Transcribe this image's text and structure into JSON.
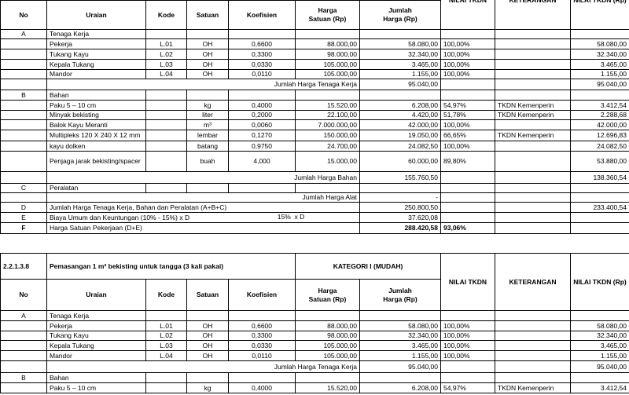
{
  "table1": {
    "header": {
      "no": "No",
      "uraian": "Uraian",
      "kode": "Kode",
      "satuan": "Satuan",
      "koef": "Koefisien",
      "harga": "Harga\nSatuan (Rp)",
      "jumlah": "Jumlah\nHarga (Rp)",
      "tkdn": "NILAI TKDN",
      "ket": "KETERANGAN",
      "nilai": "NILAI TKDN (Rp)"
    },
    "rows": [
      {
        "no": "A",
        "uraian": "Tenaga Kerja"
      },
      {
        "uraian": "Pekerja",
        "kode": "L.01",
        "satuan": "OH",
        "koef": "0,6600",
        "harga": "88.000,00",
        "jumlah": "58.080,00",
        "tkdn": "100,00%",
        "nilai": "58.080,00"
      },
      {
        "uraian": "Tukang Kayu",
        "kode": "L.02",
        "satuan": "OH",
        "koef": "0,3300",
        "harga": "98.000,00",
        "jumlah": "32.340,00",
        "tkdn": "100,00%",
        "nilai": "32.340,00"
      },
      {
        "uraian": "Kepala Tukang",
        "kode": "L.03",
        "satuan": "OH",
        "koef": "0,0330",
        "harga": "105.000,00",
        "jumlah": "3.465,00",
        "tkdn": "100,00%",
        "nilai": "3.465,00"
      },
      {
        "uraian": "Mandor",
        "kode": "L.04",
        "satuan": "OH",
        "koef": "0,0110",
        "harga": "105.000,00",
        "jumlah": "1.155,00",
        "tkdn": "100,00%",
        "nilai": "1.155,00"
      },
      {
        "subtotal": "Jumlah Harga Tenaga Kerja",
        "jumlah": "95.040,00",
        "nilai": "95.040,00"
      },
      {
        "no": "B",
        "uraian": "Bahan"
      },
      {
        "uraian": "Paku 5 – 10 cm",
        "satuan": "kg",
        "koef": "0,4000",
        "harga": "15.520,00",
        "jumlah": "6.208,00",
        "tkdn": "54,97%",
        "ket": "TKDN Kemenperin",
        "nilai": "3.412,54"
      },
      {
        "uraian": "Minyak bekisting",
        "satuan": "liter",
        "koef": "0,2000",
        "harga": "22.100,00",
        "jumlah": "4.420,00",
        "tkdn": "51,78%",
        "ket": "TKDN Kemenperin",
        "nilai": "2.288,68"
      },
      {
        "uraian": "Balok Kayu Meranti",
        "satuan": "m³",
        "koef": "0,0060",
        "harga": "7.000.000,00",
        "jumlah": "42.000,00",
        "tkdn": "100,00%",
        "nilai": "42.000,00"
      },
      {
        "uraian": "Multipleks 120 X 240 X  12 mm",
        "satuan": "lembar",
        "koef": "0,1270",
        "harga": "150.000,00",
        "jumlah": "19.050,00",
        "tkdn": "66,65%",
        "ket": "TKDN Kemenperin",
        "nilai": "12.696,83"
      },
      {
        "uraian": "kayu dolken",
        "satuan": "batang",
        "koef": "0,9750",
        "harga": "24.700,00",
        "jumlah": "24.082,50",
        "tkdn": "100,00%",
        "nilai": "24.082,50"
      },
      {
        "uraian": "Penjaga jarak bekisting/spacer",
        "satuan": "buah",
        "koef": "4,000",
        "harga": "15.000,00",
        "jumlah": "60.000,00",
        "tkdn": "89,80%",
        "nilai": "53.880,00"
      },
      {
        "subtotal": "Jumlah Harga Bahan",
        "jumlah": "155.760,50",
        "nilai": "138.360,54"
      },
      {
        "no": "C",
        "uraian": "Peralatan"
      },
      {
        "subtotal": "Jumlah Harga Alat",
        "jumlah": "-"
      },
      {
        "no": "D",
        "summary": "Jumlah Harga Tenaga Kerja, Bahan dan Peralatan (A+B+C)",
        "jumlah": "250.800,50",
        "nilai": "233.400,54"
      },
      {
        "no": "E",
        "summary": "Biaya Umum dan Keuntungan  (10% - 15%) x D",
        "note": "15%  x D",
        "jumlah": "37.620,08"
      },
      {
        "no": "F",
        "summary": "Harga Satuan Pekerjaan (D+E)",
        "jumlah": "288.420,58",
        "tkdn": "93,06%"
      }
    ]
  },
  "table2": {
    "code": "2.2.1.3.8",
    "title": "Pemasangan 1 m² bekisting untuk tangga (3 kali pakai)",
    "category": "KATEGORI I (MUDAH)",
    "header": {
      "no": "No",
      "uraian": "Uraian",
      "kode": "Kode",
      "satuan": "Satuan",
      "koef": "Koefisien",
      "harga": "Harga\nSatuan (Rp)",
      "jumlah": "Jumlah\nHarga (Rp)",
      "tkdn": "NILAI TKDN",
      "ket": "KETERANGAN",
      "nilai": "NILAI TKDN (Rp)"
    },
    "rows": [
      {
        "no": "A",
        "uraian": "Tenaga Kerja"
      },
      {
        "uraian": "Pekerja",
        "kode": "L.01",
        "satuan": "OH",
        "koef": "0,6600",
        "harga": "88.000,00",
        "jumlah": "58.080,00",
        "tkdn": "100,00%",
        "nilai": "58.080,00"
      },
      {
        "uraian": "Tukang Kayu",
        "kode": "L.02",
        "satuan": "OH",
        "koef": "0,3300",
        "harga": "98.000,00",
        "jumlah": "32.340,00",
        "tkdn": "100,00%",
        "nilai": "32.340,00"
      },
      {
        "uraian": "Kepala Tukang",
        "kode": "L.03",
        "satuan": "OH",
        "koef": "0,0330",
        "harga": "105.000,00",
        "jumlah": "3.465,00",
        "tkdn": "100,00%",
        "nilai": "3.465,00"
      },
      {
        "uraian": "Mandor",
        "kode": "L.04",
        "satuan": "OH",
        "koef": "0,0110",
        "harga": "105.000,00",
        "jumlah": "1.155,00",
        "tkdn": "100,00%",
        "nilai": "1.155,00"
      },
      {
        "subtotal": "Jumlah Harga Tenaga Kerja",
        "jumlah": "95.040,00",
        "nilai": "95.040,00"
      },
      {
        "no": "B",
        "uraian": "Bahan"
      },
      {
        "uraian": "Paku 5 – 10 cm",
        "satuan": "kg",
        "koef": "0,4000",
        "harga": "15.520,00",
        "jumlah": "6.208,00",
        "tkdn": "54,97%",
        "ket": "TKDN Kemenperin",
        "nilai": "3.412,54"
      }
    ]
  }
}
